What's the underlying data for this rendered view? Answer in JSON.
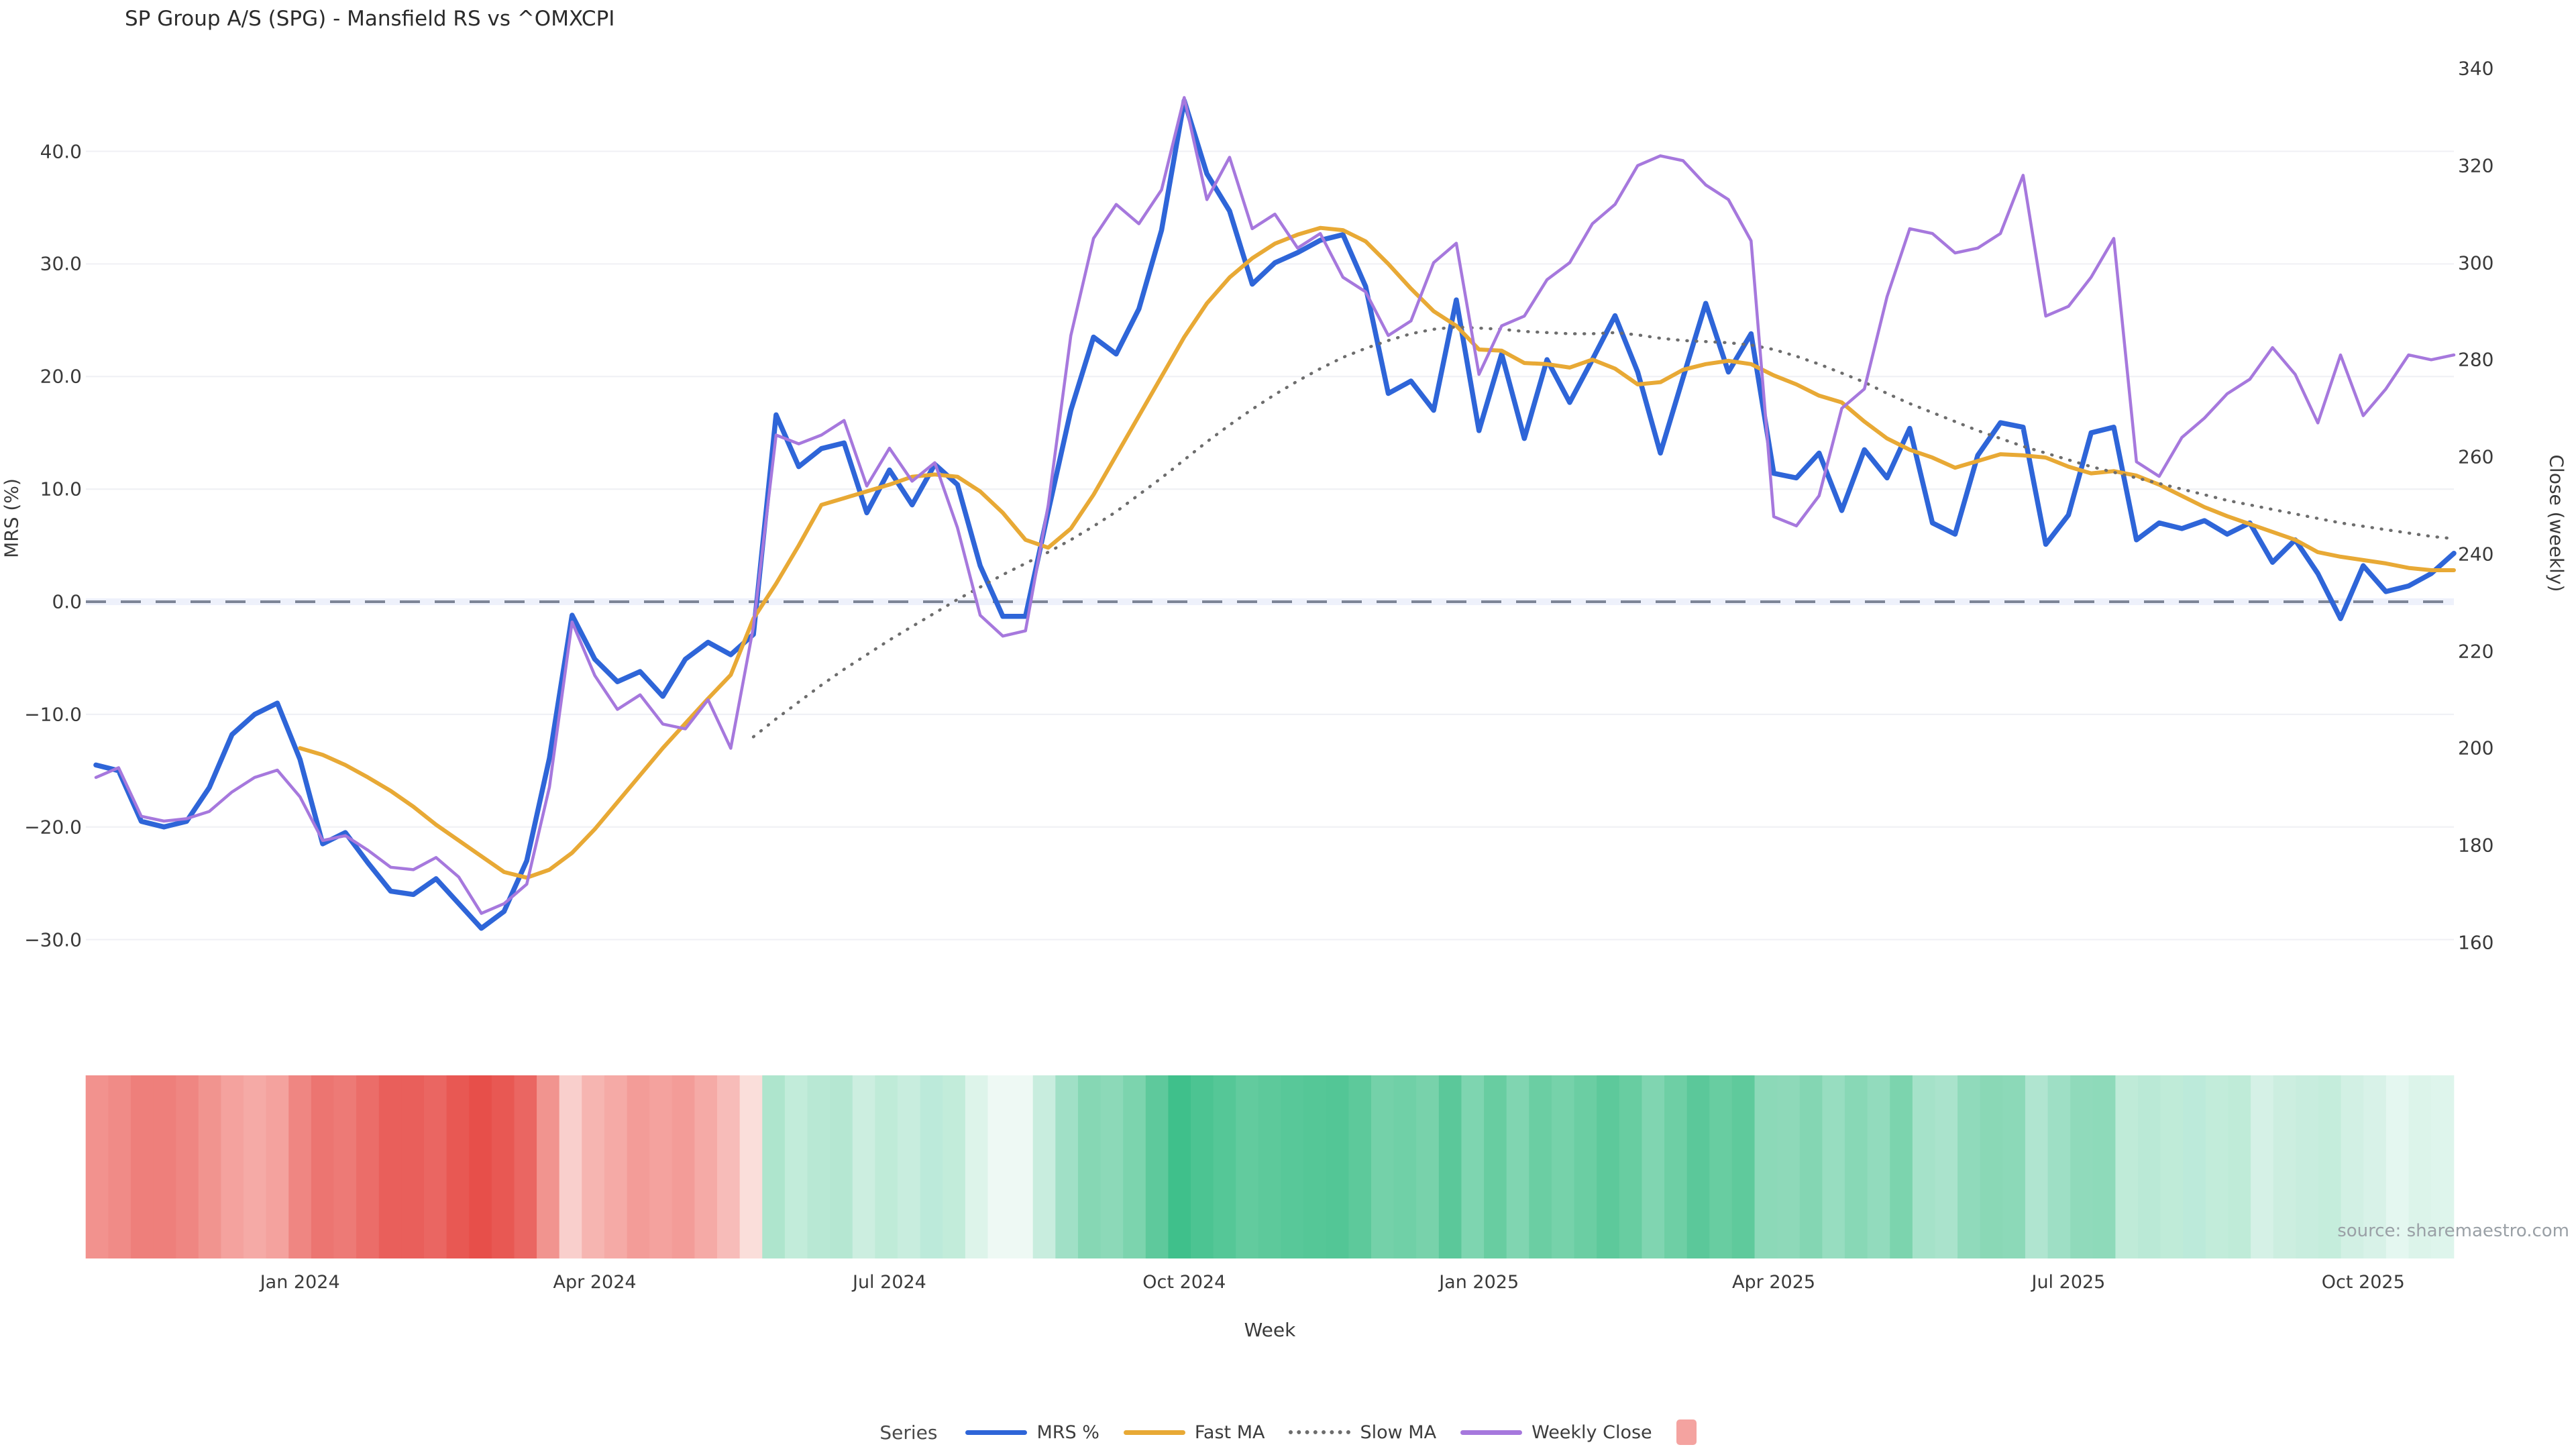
{
  "title": "SP Group A/S (SPG) - Mansfield RS vs ^OMXCPI",
  "source": "source: sharemaestro.com",
  "axes": {
    "left": {
      "label": "MRS (%)",
      "ticks": [
        {
          "v": 40,
          "t": "40.0"
        },
        {
          "v": 30,
          "t": "30.0"
        },
        {
          "v": 20,
          "t": "20.0"
        },
        {
          "v": 10,
          "t": "10.0"
        },
        {
          "v": 0,
          "t": "0.0"
        },
        {
          "v": -10,
          "t": "−10.0"
        },
        {
          "v": -20,
          "t": "−20.0"
        },
        {
          "v": -30,
          "t": "−30.0"
        }
      ]
    },
    "right": {
      "label": "Close (weekly)",
      "ticks": [
        {
          "v": 340,
          "t": "340"
        },
        {
          "v": 320,
          "t": "320"
        },
        {
          "v": 300,
          "t": "300"
        },
        {
          "v": 280,
          "t": "280"
        },
        {
          "v": 260,
          "t": "260"
        },
        {
          "v": 240,
          "t": "240"
        },
        {
          "v": 220,
          "t": "220"
        },
        {
          "v": 200,
          "t": "200"
        },
        {
          "v": 180,
          "t": "180"
        },
        {
          "v": 160,
          "t": "160"
        }
      ]
    },
    "x": {
      "label": "Week",
      "ticks": [
        {
          "w": 9,
          "t": "Jan 2024"
        },
        {
          "w": 22,
          "t": "Apr 2024"
        },
        {
          "w": 35,
          "t": "Jul 2024"
        },
        {
          "w": 48,
          "t": "Oct 2024"
        },
        {
          "w": 61,
          "t": "Jan 2025"
        },
        {
          "w": 74,
          "t": "Apr 2025"
        },
        {
          "w": 87,
          "t": "Jul 2025"
        },
        {
          "w": 100,
          "t": "Oct 2025"
        }
      ]
    }
  },
  "legend": {
    "title": "Series",
    "items": [
      {
        "label": "MRS %",
        "type": "line",
        "color": "#2e65d8"
      },
      {
        "label": "Fast MA",
        "type": "line",
        "color": "#e8a935"
      },
      {
        "label": "Slow MA",
        "type": "dotted",
        "color": "#6d6d6d"
      },
      {
        "label": "Weekly Close",
        "type": "line",
        "color": "#a678dd"
      },
      {
        "label": "",
        "type": "square",
        "color": "#f4a3a0"
      }
    ]
  },
  "chart_data": {
    "type": "line",
    "x_unit": "week_index",
    "n_weeks": 105,
    "ylim_left": [
      -33,
      46
    ],
    "ylim_right": [
      160,
      340
    ],
    "zero_line_left": 0,
    "grid": "horizontal-only",
    "series": [
      {
        "name": "MRS %",
        "axis": "left",
        "color": "#2e65d8",
        "style": "solid",
        "width": 7.5,
        "values": [
          -14.5,
          -15.0,
          -19.5,
          -20.0,
          -19.5,
          -16.5,
          -11.8,
          -10.0,
          -9.0,
          -14.0,
          -21.5,
          -20.5,
          -23.2,
          -25.7,
          -26.0,
          -24.6,
          -26.8,
          -29.0,
          -27.5,
          -23.0,
          -13.9,
          -1.2,
          -5.1,
          -7.1,
          -6.2,
          -8.4,
          -5.1,
          -3.6,
          -4.7,
          -2.9,
          16.6,
          12.0,
          13.6,
          14.1,
          7.9,
          11.7,
          8.6,
          12.2,
          10.4,
          3.2,
          -1.3,
          -1.3,
          8.0,
          17.0,
          23.5,
          22.0,
          26.0,
          33.0,
          44.5,
          38.0,
          34.7,
          28.2,
          30.1,
          31.0,
          32.1,
          32.6,
          28.0,
          18.5,
          19.6,
          17.0,
          26.8,
          15.2,
          22.0,
          14.5,
          21.5,
          17.7,
          21.5,
          25.4,
          20.4,
          13.2,
          19.9,
          26.5,
          20.4,
          23.8,
          11.4,
          11.0,
          13.2,
          8.1,
          13.5,
          11.0,
          15.4,
          7.0,
          6.0,
          13.0,
          15.9,
          15.5,
          5.1,
          7.7,
          15.0,
          15.5,
          5.5,
          7.0,
          6.5,
          7.2,
          6.0,
          7.0,
          3.5,
          5.5,
          2.5,
          -1.5,
          3.2,
          0.9,
          1.4,
          2.5,
          4.3
        ]
      },
      {
        "name": "Fast MA",
        "axis": "left",
        "color": "#e8a935",
        "style": "solid",
        "width": 6,
        "values": [
          null,
          null,
          null,
          null,
          null,
          null,
          null,
          null,
          null,
          -13.0,
          -13.6,
          -14.5,
          -15.6,
          -16.8,
          -18.2,
          -19.8,
          -21.2,
          -22.6,
          -24.0,
          -24.5,
          -23.8,
          -22.3,
          -20.2,
          -17.8,
          -15.4,
          -13.0,
          -10.8,
          -8.6,
          -6.5,
          -1.5,
          1.6,
          5.0,
          8.6,
          9.2,
          9.8,
          10.4,
          11.1,
          11.3,
          11.1,
          9.8,
          7.9,
          5.5,
          4.8,
          6.5,
          9.5,
          13.0,
          16.5,
          20.0,
          23.5,
          26.5,
          28.8,
          30.5,
          31.8,
          32.6,
          33.2,
          33.0,
          32.0,
          30.0,
          27.8,
          25.8,
          24.5,
          22.4,
          22.3,
          21.2,
          21.1,
          20.8,
          21.5,
          20.7,
          19.3,
          19.5,
          20.6,
          21.1,
          21.4,
          21.1,
          20.1,
          19.3,
          18.3,
          17.7,
          16.0,
          14.5,
          13.5,
          12.8,
          11.9,
          12.5,
          13.1,
          13.0,
          12.8,
          12.0,
          11.4,
          11.6,
          11.2,
          10.4,
          9.4,
          8.4,
          7.6,
          6.9,
          6.2,
          5.5,
          4.4,
          4.0,
          3.7,
          3.4,
          3.0,
          2.8,
          2.8
        ]
      },
      {
        "name": "Slow MA",
        "axis": "left",
        "color": "#6d6d6d",
        "style": "dotted",
        "width": 4.5,
        "values": [
          null,
          null,
          null,
          null,
          null,
          null,
          null,
          null,
          null,
          null,
          null,
          null,
          null,
          null,
          null,
          null,
          null,
          null,
          null,
          null,
          null,
          null,
          null,
          null,
          null,
          null,
          null,
          null,
          null,
          -12.0,
          -10.4,
          -8.9,
          -7.4,
          -6.0,
          -4.7,
          -3.4,
          -2.2,
          -1.0,
          0.2,
          1.3,
          2.4,
          3.4,
          4.4,
          5.5,
          6.7,
          8.0,
          9.5,
          11.0,
          12.6,
          14.2,
          15.7,
          17.1,
          18.4,
          19.6,
          20.7,
          21.7,
          22.5,
          23.2,
          23.8,
          24.2,
          24.4,
          24.3,
          24.2,
          24.0,
          23.9,
          23.8,
          23.8,
          23.9,
          23.7,
          23.4,
          23.2,
          23.1,
          23.0,
          22.8,
          22.4,
          21.8,
          21.1,
          20.3,
          19.5,
          18.5,
          17.6,
          16.8,
          16.0,
          15.2,
          14.5,
          13.8,
          13.2,
          12.6,
          12.0,
          11.5,
          11.0,
          10.5,
          10.0,
          9.5,
          9.0,
          8.6,
          8.2,
          7.8,
          7.4,
          7.0,
          6.7,
          6.4,
          6.1,
          5.8,
          5.6
        ]
      },
      {
        "name": "Weekly Close",
        "axis": "right",
        "color": "#a678dd",
        "style": "solid",
        "width": 4.5,
        "values": [
          194,
          196,
          186,
          185,
          185.5,
          187,
          191,
          194,
          195.5,
          190,
          181,
          182,
          179,
          175.5,
          175,
          177.5,
          173.5,
          166,
          168,
          172,
          192,
          226,
          215,
          208,
          211,
          205,
          204,
          210,
          200,
          225,
          264.5,
          262.7,
          264.5,
          267.5,
          254,
          261.8,
          255,
          258.8,
          245.4,
          227.4,
          223.1,
          224.2,
          250,
          285,
          305,
          312,
          308,
          315,
          334,
          313,
          321.7,
          307,
          310,
          303,
          306,
          297,
          294,
          285,
          288,
          300,
          304,
          277,
          287,
          289,
          296.5,
          300,
          308,
          312,
          320,
          322,
          321,
          316,
          313,
          304.5,
          247.7,
          245.8,
          252,
          270,
          274,
          293,
          307,
          306,
          302,
          303,
          306,
          318,
          289,
          291,
          297,
          305,
          259,
          256,
          264,
          268,
          273,
          276,
          282.5,
          277,
          267,
          281,
          268.5,
          274,
          281,
          280,
          281
        ]
      }
    ],
    "heatmap": {
      "description": "weekly sentiment strip below chart",
      "colors": [
        "#f2928e",
        "#f08b87",
        "#ee7f7b",
        "#ee7f7b",
        "#ef8682",
        "#f1948f",
        "#f4a29e",
        "#f5aaa6",
        "#f4a29e",
        "#ef8682",
        "#ec7571",
        "#ed7a76",
        "#eb6d69",
        "#e95f5b",
        "#e95f5b",
        "#ea6662",
        "#e85853",
        "#e74f4a",
        "#e85853",
        "#ea6662",
        "#f1948f",
        "#f9cfcc",
        "#f6b5b1",
        "#f5aaa6",
        "#f39c98",
        "#f4a29e",
        "#f39c98",
        "#f5aaa6",
        "#f7bcb9",
        "#fadeda",
        "#aee5cd",
        "#c2ecda",
        "#b8e8d4",
        "#b5e7d2",
        "#cceee0",
        "#bfebd8",
        "#c8edde",
        "#bceada",
        "#c2ecda",
        "#ddf4ea",
        "#eef9f4",
        "#eef9f4",
        "#c8edde",
        "#a0e0c6",
        "#86d7b4",
        "#8cd9b8",
        "#7cd4ae",
        "#5ec99c",
        "#3fc08b",
        "#4cc492",
        "#55c797",
        "#62cb9e",
        "#5dc99b",
        "#58c899",
        "#55c797",
        "#53c696",
        "#5dc99b",
        "#74d1a9",
        "#70d0a7",
        "#78d2ab",
        "#5bc89a",
        "#7ed5b0",
        "#68cda1",
        "#80d5b1",
        "#6bcea3",
        "#76d2aa",
        "#6bcea3",
        "#5dc99b",
        "#68cda1",
        "#80d5b1",
        "#6ecfa5",
        "#5bc89a",
        "#68cda1",
        "#5fca9c",
        "#8cd9b8",
        "#8ed9b9",
        "#84d6b3",
        "#97ddc0",
        "#88d8b6",
        "#92dbbd",
        "#7cd4ae",
        "#a5e2c9",
        "#aae3cc",
        "#90dabb",
        "#8ad8b6",
        "#8cd9b8",
        "#b0e5d0",
        "#9edfc5",
        "#90dabb",
        "#8edaba",
        "#bfebd8",
        "#bae9d6",
        "#bfebd8",
        "#bceada",
        "#c2ecda",
        "#bfebd8",
        "#d5f1e6",
        "#cceee0",
        "#c8edde",
        "#c5eddc",
        "#d2f0e4",
        "#d8f2e8",
        "#e4f7f0",
        "#dcf4ea",
        "#def5ec"
      ]
    }
  },
  "style": {
    "grid_color": "#f0f1f5",
    "zero_line_color": "#7d8597",
    "zero_band_color": "#eef1fb",
    "background": "#ffffff"
  }
}
